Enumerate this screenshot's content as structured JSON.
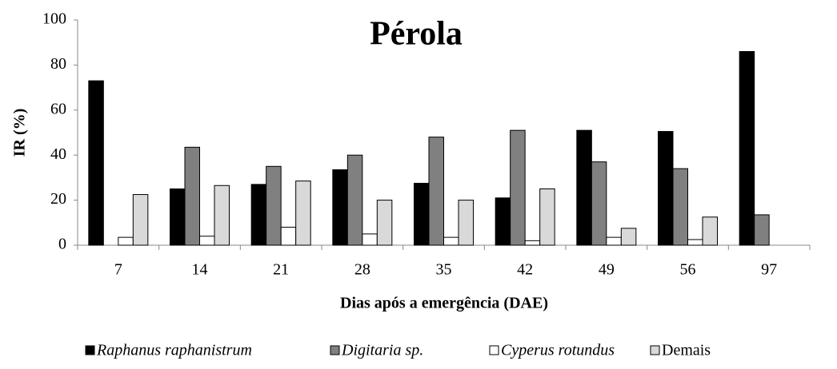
{
  "chart_data": {
    "type": "bar",
    "title": "Pérola",
    "xlabel": "Dias após a emergência (DAE)",
    "ylabel": "IR (%)",
    "categories": [
      "7",
      "14",
      "21",
      "28",
      "35",
      "42",
      "49",
      "56",
      "97"
    ],
    "series": [
      {
        "name": "Raphanus raphanistrum",
        "color": "#000000",
        "italic": true,
        "values": [
          73,
          25,
          27,
          33.5,
          27.5,
          21,
          51,
          50.5,
          86
        ]
      },
      {
        "name": "Digitaria sp.",
        "color": "#808080",
        "italic": true,
        "values": [
          0,
          43.5,
          35,
          40,
          48,
          51,
          37,
          34,
          13.5
        ]
      },
      {
        "name": "Cyperus rotundus",
        "color": "#ffffff",
        "italic": true,
        "values": [
          3.5,
          4,
          8,
          5,
          3.5,
          2,
          3.5,
          2.5,
          0
        ]
      },
      {
        "name": "Demais",
        "color": "#d9d9d9",
        "italic": false,
        "values": [
          22.5,
          26.5,
          28.5,
          20,
          20,
          25,
          7.5,
          12.5,
          0
        ]
      }
    ],
    "ylim": [
      0,
      100
    ],
    "yticks": [
      0,
      20,
      40,
      60,
      80,
      100
    ],
    "grid": false,
    "legend": "bottom"
  }
}
